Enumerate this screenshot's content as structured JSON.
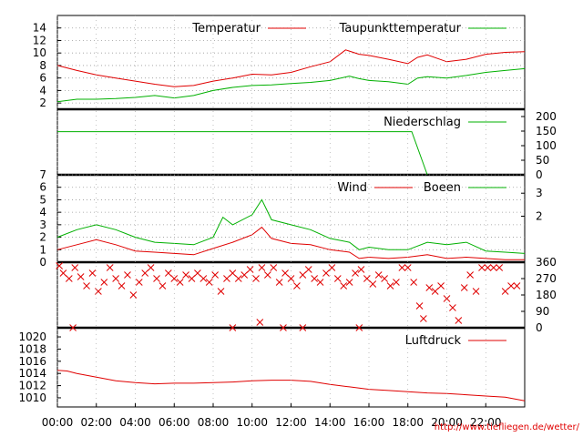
{
  "url": "http://www.tiefliegen.de/wetter/",
  "x_axis": {
    "tick_labels": [
      "00:00",
      "02:00",
      "04:00",
      "06:00",
      "08:00",
      "10:00",
      "12:00",
      "14:00",
      "16:00",
      "18:00",
      "20:00",
      "22:00"
    ],
    "hours_span": [
      0,
      24
    ]
  },
  "colors": {
    "red": "#e00000",
    "green": "#00b000",
    "grid": "#9a9a9a"
  },
  "chart_data": [
    {
      "type": "line",
      "id": "temperature",
      "ylim": [
        1,
        16
      ],
      "ytick_labels": [
        "2",
        "4",
        "6",
        "8",
        "10",
        "12",
        "14"
      ],
      "series": [
        {
          "name": "Temperatur",
          "color": "red",
          "x": [
            0,
            1,
            2,
            3,
            4,
            5,
            6,
            7,
            8,
            9,
            10,
            11,
            12,
            13,
            14,
            14.8,
            15.5,
            16,
            17,
            18,
            18.5,
            19,
            20,
            21,
            22,
            23,
            24
          ],
          "values": [
            8.0,
            7.2,
            6.5,
            6.0,
            5.5,
            5.0,
            4.6,
            4.8,
            5.5,
            6.0,
            6.6,
            6.5,
            6.9,
            7.8,
            8.6,
            10.5,
            9.8,
            9.6,
            9.0,
            8.3,
            9.3,
            9.7,
            8.6,
            9.0,
            9.8,
            10.1,
            10.2
          ]
        },
        {
          "name": "Taupunkttemperatur",
          "color": "green",
          "x": [
            0,
            1,
            2,
            3,
            4,
            5,
            6,
            7,
            8,
            9,
            10,
            11,
            12,
            13,
            14,
            15,
            15.5,
            16,
            17,
            18,
            18.5,
            19,
            20,
            21,
            22,
            23,
            24
          ],
          "values": [
            2.2,
            2.6,
            2.6,
            2.7,
            2.9,
            3.2,
            2.8,
            3.2,
            4.0,
            4.5,
            4.8,
            4.9,
            5.1,
            5.3,
            5.6,
            6.3,
            5.9,
            5.6,
            5.4,
            5.0,
            6.0,
            6.2,
            6.0,
            6.4,
            6.9,
            7.2,
            7.5
          ]
        }
      ]
    },
    {
      "type": "line",
      "id": "precipitation",
      "ylim": [
        0,
        225
      ],
      "ytick_labels": [
        "0",
        "50",
        "100",
        "150",
        "200"
      ],
      "series": [
        {
          "name": "Niederschlag",
          "color": "green",
          "x": [
            0,
            18.2,
            19.0
          ],
          "values": [
            148,
            148,
            0
          ]
        }
      ]
    },
    {
      "type": "line",
      "id": "wind",
      "ylim": [
        0,
        7
      ],
      "ytick_labels": [
        "0",
        "1",
        "2",
        "3",
        "4",
        "5",
        "6",
        "7"
      ],
      "right_tick_labels": [
        "2",
        "3"
      ],
      "series": [
        {
          "name": "Wind",
          "color": "red",
          "x": [
            0,
            1,
            2,
            3,
            4,
            5,
            6,
            7,
            8,
            9,
            10,
            10.5,
            11,
            12,
            13,
            14,
            15,
            15.5,
            16,
            17,
            18,
            19,
            20,
            21,
            22,
            23,
            24
          ],
          "values": [
            1.0,
            1.4,
            1.8,
            1.4,
            0.9,
            0.8,
            0.7,
            0.6,
            1.1,
            1.6,
            2.2,
            2.8,
            1.9,
            1.5,
            1.4,
            1.0,
            0.8,
            0.3,
            0.4,
            0.3,
            0.4,
            0.6,
            0.3,
            0.4,
            0.3,
            0.2,
            0.2
          ]
        },
        {
          "name": "Boeen",
          "color": "green",
          "x": [
            0,
            1,
            2,
            3,
            4,
            5,
            6,
            7,
            8,
            8.5,
            9,
            10,
            10.5,
            11,
            12,
            13,
            14,
            15,
            15.5,
            16,
            17,
            18,
            19,
            20,
            21,
            22,
            23,
            24
          ],
          "values": [
            2.0,
            2.6,
            3.0,
            2.6,
            2.0,
            1.6,
            1.5,
            1.4,
            2.0,
            3.6,
            3.0,
            3.8,
            5.0,
            3.4,
            3.0,
            2.6,
            1.9,
            1.6,
            1.0,
            1.2,
            1.0,
            1.0,
            1.6,
            1.4,
            1.6,
            0.9,
            0.8,
            0.7
          ]
        }
      ]
    },
    {
      "type": "scatter",
      "id": "wind-direction",
      "ylim": [
        0,
        360
      ],
      "ytick_labels": [
        "0",
        "90",
        "180",
        "270",
        "360"
      ],
      "points": [
        [
          0.1,
          340
        ],
        [
          0.3,
          300
        ],
        [
          0.6,
          270
        ],
        [
          0.9,
          330
        ],
        [
          1.2,
          280
        ],
        [
          1.5,
          230
        ],
        [
          1.8,
          300
        ],
        [
          2.1,
          200
        ],
        [
          2.4,
          250
        ],
        [
          2.7,
          330
        ],
        [
          3.0,
          270
        ],
        [
          3.3,
          230
        ],
        [
          3.6,
          290
        ],
        [
          3.9,
          180
        ],
        [
          4.2,
          250
        ],
        [
          4.5,
          300
        ],
        [
          4.8,
          330
        ],
        [
          5.1,
          270
        ],
        [
          5.4,
          230
        ],
        [
          5.7,
          300
        ],
        [
          6.0,
          270
        ],
        [
          6.3,
          250
        ],
        [
          6.6,
          290
        ],
        [
          6.9,
          270
        ],
        [
          7.2,
          300
        ],
        [
          7.5,
          270
        ],
        [
          7.8,
          250
        ],
        [
          8.1,
          290
        ],
        [
          8.4,
          200
        ],
        [
          8.7,
          270
        ],
        [
          9.0,
          300
        ],
        [
          9.3,
          270
        ],
        [
          9.6,
          290
        ],
        [
          9.9,
          320
        ],
        [
          10.2,
          270
        ],
        [
          10.5,
          330
        ],
        [
          10.8,
          290
        ],
        [
          11.1,
          330
        ],
        [
          11.4,
          250
        ],
        [
          11.7,
          300
        ],
        [
          12.0,
          270
        ],
        [
          12.3,
          230
        ],
        [
          12.6,
          290
        ],
        [
          12.9,
          320
        ],
        [
          13.2,
          270
        ],
        [
          13.5,
          250
        ],
        [
          13.8,
          300
        ],
        [
          14.1,
          330
        ],
        [
          14.4,
          270
        ],
        [
          14.7,
          230
        ],
        [
          15.0,
          250
        ],
        [
          15.3,
          300
        ],
        [
          15.6,
          320
        ],
        [
          15.9,
          270
        ],
        [
          16.2,
          240
        ],
        [
          16.5,
          290
        ],
        [
          16.8,
          270
        ],
        [
          17.1,
          230
        ],
        [
          17.4,
          250
        ],
        [
          17.7,
          330
        ],
        [
          18.0,
          330
        ],
        [
          18.3,
          250
        ],
        [
          18.6,
          120
        ],
        [
          18.8,
          50
        ],
        [
          19.1,
          220
        ],
        [
          19.4,
          200
        ],
        [
          19.7,
          230
        ],
        [
          20.0,
          160
        ],
        [
          20.3,
          110
        ],
        [
          20.6,
          40
        ],
        [
          20.9,
          220
        ],
        [
          21.2,
          290
        ],
        [
          21.5,
          200
        ],
        [
          21.8,
          330
        ],
        [
          22.1,
          330
        ],
        [
          22.4,
          330
        ],
        [
          22.7,
          330
        ],
        [
          23.0,
          200
        ],
        [
          23.3,
          230
        ],
        [
          23.6,
          230
        ],
        [
          0.8,
          0
        ],
        [
          9.0,
          0
        ],
        [
          10.4,
          30
        ],
        [
          11.6,
          0
        ],
        [
          12.6,
          0
        ],
        [
          15.5,
          0
        ]
      ]
    },
    {
      "type": "line",
      "id": "pressure",
      "ylim": [
        1008.5,
        1021.5
      ],
      "ytick_labels": [
        "1010",
        "1012",
        "1014",
        "1016",
        "1018",
        "1020"
      ],
      "series": [
        {
          "name": "Luftdruck",
          "color": "red",
          "x": [
            0,
            0.5,
            1,
            2,
            3,
            4,
            5,
            6,
            7,
            8,
            9,
            10,
            11,
            12,
            13,
            14,
            15,
            16,
            17,
            18,
            19,
            20,
            21,
            22,
            23,
            24
          ],
          "values": [
            1014.5,
            1014.4,
            1014.0,
            1013.4,
            1012.8,
            1012.5,
            1012.3,
            1012.4,
            1012.4,
            1012.5,
            1012.6,
            1012.8,
            1012.9,
            1012.9,
            1012.7,
            1012.2,
            1011.8,
            1011.4,
            1011.2,
            1011.0,
            1010.8,
            1010.7,
            1010.5,
            1010.3,
            1010.1,
            1009.5
          ]
        }
      ]
    }
  ]
}
